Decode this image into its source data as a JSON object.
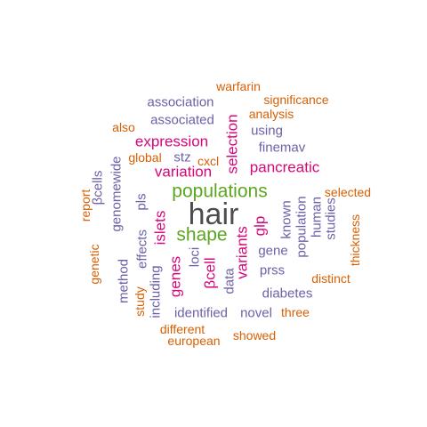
{
  "colors": {
    "gray": "#4d4d4d",
    "green": "#5ba61e",
    "magenta": "#d6077c",
    "purple": "#6b61a8",
    "orange": "#d85f02"
  },
  "words": [
    {
      "text": "hair",
      "color": "gray"
    },
    {
      "text": "populations",
      "color": "green"
    },
    {
      "text": "shape",
      "color": "green"
    },
    {
      "text": "expression",
      "color": "magenta"
    },
    {
      "text": "pancreatic",
      "color": "magenta"
    },
    {
      "text": "variation",
      "color": "magenta"
    },
    {
      "text": "selection",
      "color": "magenta"
    },
    {
      "text": "islets",
      "color": "magenta"
    },
    {
      "text": "glp",
      "color": "magenta"
    },
    {
      "text": "genes",
      "color": "magenta"
    },
    {
      "text": "βcell",
      "color": "magenta"
    },
    {
      "text": "variants",
      "color": "magenta"
    },
    {
      "text": "association",
      "color": "purple"
    },
    {
      "text": "associated",
      "color": "purple"
    },
    {
      "text": "finemav",
      "color": "purple"
    },
    {
      "text": "stz",
      "color": "purple"
    },
    {
      "text": "using",
      "color": "purple"
    },
    {
      "text": "gene",
      "color": "purple"
    },
    {
      "text": "prss",
      "color": "purple"
    },
    {
      "text": "diabetes",
      "color": "purple"
    },
    {
      "text": "identified",
      "color": "purple"
    },
    {
      "text": "novel",
      "color": "purple"
    },
    {
      "text": "genomewide",
      "color": "purple"
    },
    {
      "text": "βcells",
      "color": "purple"
    },
    {
      "text": "method",
      "color": "purple"
    },
    {
      "text": "effects",
      "color": "purple"
    },
    {
      "text": "pls",
      "color": "purple"
    },
    {
      "text": "including",
      "color": "purple"
    },
    {
      "text": "loci",
      "color": "purple"
    },
    {
      "text": "data",
      "color": "purple"
    },
    {
      "text": "known",
      "color": "purple"
    },
    {
      "text": "population",
      "color": "purple"
    },
    {
      "text": "human",
      "color": "purple"
    },
    {
      "text": "studies",
      "color": "purple"
    },
    {
      "text": "warfarin",
      "color": "orange"
    },
    {
      "text": "significance",
      "color": "orange"
    },
    {
      "text": "analysis",
      "color": "orange"
    },
    {
      "text": "also",
      "color": "orange"
    },
    {
      "text": "global",
      "color": "orange"
    },
    {
      "text": "cxcl",
      "color": "orange"
    },
    {
      "text": "report",
      "color": "orange"
    },
    {
      "text": "genetic",
      "color": "orange"
    },
    {
      "text": "study",
      "color": "orange"
    },
    {
      "text": "selected",
      "color": "orange"
    },
    {
      "text": "thickness",
      "color": "orange"
    },
    {
      "text": "distinct",
      "color": "orange"
    },
    {
      "text": "three",
      "color": "orange"
    },
    {
      "text": "different",
      "color": "orange"
    },
    {
      "text": "european",
      "color": "orange"
    },
    {
      "text": "showed",
      "color": "orange"
    }
  ]
}
